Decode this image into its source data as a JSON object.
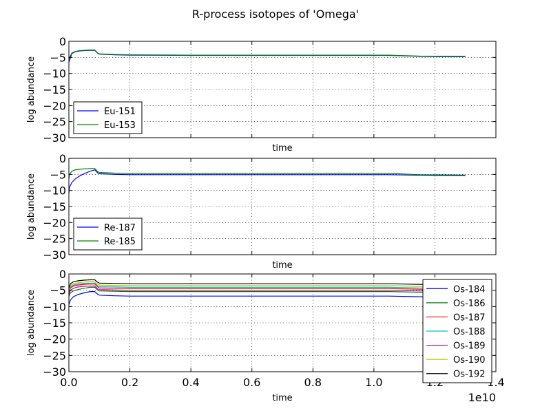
{
  "figure": {
    "title": "R-process isotopes of 'Omega'",
    "offset_text": "1e10"
  },
  "chart_data": [
    {
      "type": "line",
      "xlabel": "time",
      "ylabel": "log abundance",
      "xlim": [
        0,
        14000000000.0
      ],
      "ylim": [
        -30,
        0
      ],
      "yticks": [
        0,
        -5,
        -10,
        -15,
        -20,
        -25,
        -30
      ],
      "yticklabels": [
        "0",
        "−5",
        "−10",
        "−15",
        "−20",
        "−25",
        "−30"
      ],
      "xtick_labels_visible": false,
      "grid": true,
      "legend_position": "lower-left",
      "series": [
        {
          "name": "Eu-151",
          "color": "#0000ff",
          "x": [
            0,
            100000000.0,
            200000000.0,
            350000000.0,
            500000000.0,
            700000000.0,
            850000000.0,
            950000000.0,
            1000000000.0,
            1500000000.0,
            2000000000.0,
            4000000000.0,
            6000000000.0,
            8000000000.0,
            10000000000.0,
            10500000000.0,
            11500000000.0,
            13000000000.0
          ],
          "y": [
            -6.5,
            -3.8,
            -3.3,
            -3.0,
            -2.9,
            -2.8,
            -2.8,
            -3.8,
            -4.0,
            -4.2,
            -4.3,
            -4.4,
            -4.4,
            -4.4,
            -4.4,
            -4.4,
            -4.7,
            -4.8
          ]
        },
        {
          "name": "Eu-153",
          "color": "#008000",
          "x": [
            0,
            100000000.0,
            200000000.0,
            350000000.0,
            500000000.0,
            700000000.0,
            850000000.0,
            950000000.0,
            1000000000.0,
            1500000000.0,
            2000000000.0,
            4000000000.0,
            6000000000.0,
            8000000000.0,
            10000000000.0,
            10500000000.0,
            11500000000.0,
            13000000000.0
          ],
          "y": [
            -5.5,
            -3.6,
            -3.2,
            -2.9,
            -2.8,
            -2.7,
            -2.7,
            -3.7,
            -3.9,
            -4.1,
            -4.2,
            -4.3,
            -4.3,
            -4.3,
            -4.3,
            -4.3,
            -4.6,
            -4.7
          ]
        }
      ]
    },
    {
      "type": "line",
      "xlabel": "time",
      "ylabel": "log abundance",
      "xlim": [
        0,
        14000000000.0
      ],
      "ylim": [
        -30,
        0
      ],
      "yticks": [
        0,
        -5,
        -10,
        -15,
        -20,
        -25,
        -30
      ],
      "yticklabels": [
        "0",
        "−5",
        "−10",
        "−15",
        "−20",
        "−25",
        "−30"
      ],
      "xtick_labels_visible": false,
      "grid": true,
      "legend_position": "lower-left",
      "series": [
        {
          "name": "Re-187",
          "color": "#0000ff",
          "x": [
            0,
            20000000.0,
            100000000.0,
            200000000.0,
            350000000.0,
            500000000.0,
            700000000.0,
            850000000.0,
            950000000.0,
            1000000000.0,
            1500000000.0,
            2000000000.0,
            4000000000.0,
            6000000000.0,
            8000000000.0,
            10000000000.0,
            10500000000.0,
            11500000000.0,
            13000000000.0
          ],
          "y": [
            -11.0,
            -9.0,
            -7.5,
            -6.5,
            -5.5,
            -4.8,
            -4.0,
            -3.6,
            -4.6,
            -4.8,
            -5.0,
            -5.1,
            -5.1,
            -5.1,
            -5.1,
            -5.1,
            -5.1,
            -5.3,
            -5.4
          ]
        },
        {
          "name": "Re-185",
          "color": "#008000",
          "x": [
            0,
            20000000.0,
            100000000.0,
            200000000.0,
            350000000.0,
            500000000.0,
            700000000.0,
            850000000.0,
            950000000.0,
            1000000000.0,
            1500000000.0,
            2000000000.0,
            4000000000.0,
            6000000000.0,
            8000000000.0,
            10000000000.0,
            10500000000.0,
            11500000000.0,
            13000000000.0
          ],
          "y": [
            -6.5,
            -5.0,
            -4.0,
            -3.6,
            -3.4,
            -3.3,
            -3.2,
            -3.2,
            -4.2,
            -4.4,
            -4.6,
            -4.7,
            -4.7,
            -4.7,
            -4.7,
            -4.7,
            -4.7,
            -5.1,
            -5.2
          ]
        }
      ]
    },
    {
      "type": "line",
      "xlabel": "time",
      "ylabel": "log abundance",
      "xlim": [
        0,
        14000000000.0
      ],
      "ylim": [
        -30,
        0
      ],
      "xticks": [
        0,
        2000000000.0,
        4000000000.0,
        6000000000.0,
        8000000000.0,
        10000000000.0,
        12000000000.0,
        14000000000.0
      ],
      "xticklabels": [
        "0.0",
        "0.2",
        "0.4",
        "0.6",
        "0.8",
        "1.0",
        "1.2",
        "1.4"
      ],
      "yticks": [
        0,
        -5,
        -10,
        -15,
        -20,
        -25,
        -30
      ],
      "yticklabels": [
        "0",
        "−5",
        "−10",
        "−15",
        "−20",
        "−25",
        "−30"
      ],
      "grid": true,
      "legend_position": "lower-right",
      "series": [
        {
          "name": "Os-184",
          "color": "#0000ff",
          "x": [
            0,
            50000000.0,
            150000000.0,
            300000000.0,
            500000000.0,
            700000000.0,
            850000000.0,
            950000000.0,
            1000000000.0,
            1500000000.0,
            2000000000.0,
            4000000000.0,
            6000000000.0,
            8000000000.0,
            10000000000.0,
            10500000000.0,
            11500000000.0,
            13000000000.0
          ],
          "y": [
            -9.5,
            -8.0,
            -7.0,
            -6.3,
            -5.8,
            -5.4,
            -5.4,
            -6.3,
            -6.5,
            -6.7,
            -6.8,
            -6.8,
            -6.8,
            -6.8,
            -6.8,
            -6.8,
            -7.0,
            -7.1
          ]
        },
        {
          "name": "Os-186",
          "color": "#008000",
          "x": [
            0,
            50000000.0,
            150000000.0,
            300000000.0,
            500000000.0,
            700000000.0,
            850000000.0,
            950000000.0,
            1000000000.0,
            1500000000.0,
            2000000000.0,
            4000000000.0,
            6000000000.0,
            8000000000.0,
            10000000000.0,
            10500000000.0,
            11500000000.0,
            13000000000.0
          ],
          "y": [
            -7.0,
            -5.8,
            -5.2,
            -4.8,
            -4.4,
            -4.1,
            -4.1,
            -5.0,
            -5.2,
            -5.3,
            -5.4,
            -5.4,
            -5.4,
            -5.4,
            -5.4,
            -5.4,
            -5.6,
            -5.7
          ]
        },
        {
          "name": "Os-187",
          "color": "#ff0000",
          "x": [
            0,
            50000000.0,
            150000000.0,
            300000000.0,
            500000000.0,
            700000000.0,
            850000000.0,
            950000000.0,
            1000000000.0,
            1500000000.0,
            2000000000.0,
            4000000000.0,
            6000000000.0,
            8000000000.0,
            10000000000.0,
            10500000000.0,
            11500000000.0,
            13000000000.0
          ],
          "y": [
            -6.0,
            -4.3,
            -3.7,
            -3.4,
            -3.2,
            -3.1,
            -3.1,
            -4.0,
            -4.3,
            -4.4,
            -4.5,
            -4.5,
            -4.5,
            -4.5,
            -4.5,
            -4.5,
            -4.7,
            -4.8
          ]
        },
        {
          "name": "Os-188",
          "color": "#00bfbf",
          "x": [
            0,
            50000000.0,
            150000000.0,
            300000000.0,
            500000000.0,
            700000000.0,
            850000000.0,
            950000000.0,
            1000000000.0,
            1500000000.0,
            2000000000.0,
            4000000000.0,
            6000000000.0,
            8000000000.0,
            10000000000.0,
            10500000000.0,
            11500000000.0,
            13000000000.0
          ],
          "y": [
            -5.5,
            -4.0,
            -3.4,
            -3.1,
            -2.9,
            -2.8,
            -2.8,
            -3.7,
            -3.9,
            -4.0,
            -4.1,
            -4.1,
            -4.1,
            -4.1,
            -4.1,
            -4.1,
            -4.3,
            -4.4
          ]
        },
        {
          "name": "Os-189",
          "color": "#bf00bf",
          "x": [
            0,
            50000000.0,
            150000000.0,
            300000000.0,
            500000000.0,
            700000000.0,
            850000000.0,
            950000000.0,
            1000000000.0,
            1500000000.0,
            2000000000.0,
            4000000000.0,
            6000000000.0,
            8000000000.0,
            10000000000.0,
            10500000000.0,
            11500000000.0,
            13000000000.0
          ],
          "y": [
            -6.5,
            -5.0,
            -4.4,
            -4.0,
            -3.8,
            -3.7,
            -3.7,
            -4.6,
            -4.8,
            -4.9,
            -5.0,
            -5.0,
            -5.0,
            -5.0,
            -5.0,
            -5.0,
            -5.2,
            -5.3
          ]
        },
        {
          "name": "Os-190",
          "color": "#bfbf00",
          "x": [
            0,
            50000000.0,
            150000000.0,
            300000000.0,
            500000000.0,
            700000000.0,
            850000000.0,
            950000000.0,
            1000000000.0,
            1500000000.0,
            2000000000.0,
            4000000000.0,
            6000000000.0,
            8000000000.0,
            10000000000.0,
            10500000000.0,
            11500000000.0,
            13000000000.0
          ],
          "y": [
            -5.0,
            -3.6,
            -3.0,
            -2.7,
            -2.5,
            -2.4,
            -2.4,
            -3.2,
            -3.4,
            -3.5,
            -3.6,
            -3.6,
            -3.6,
            -3.6,
            -3.6,
            -3.6,
            -3.8,
            -3.9
          ]
        },
        {
          "name": "Os-192",
          "color": "#000000",
          "x": [
            0,
            50000000.0,
            150000000.0,
            300000000.0,
            500000000.0,
            700000000.0,
            850000000.0,
            950000000.0,
            1000000000.0,
            1500000000.0,
            2000000000.0,
            4000000000.0,
            6000000000.0,
            8000000000.0,
            10000000000.0,
            10500000000.0,
            11500000000.0,
            13000000000.0
          ],
          "y": [
            -4.5,
            -3.0,
            -2.4,
            -2.1,
            -1.9,
            -1.8,
            -1.8,
            -2.6,
            -2.8,
            -2.9,
            -3.0,
            -3.0,
            -3.0,
            -3.0,
            -3.0,
            -3.0,
            -3.2,
            -3.3
          ]
        }
      ]
    }
  ]
}
